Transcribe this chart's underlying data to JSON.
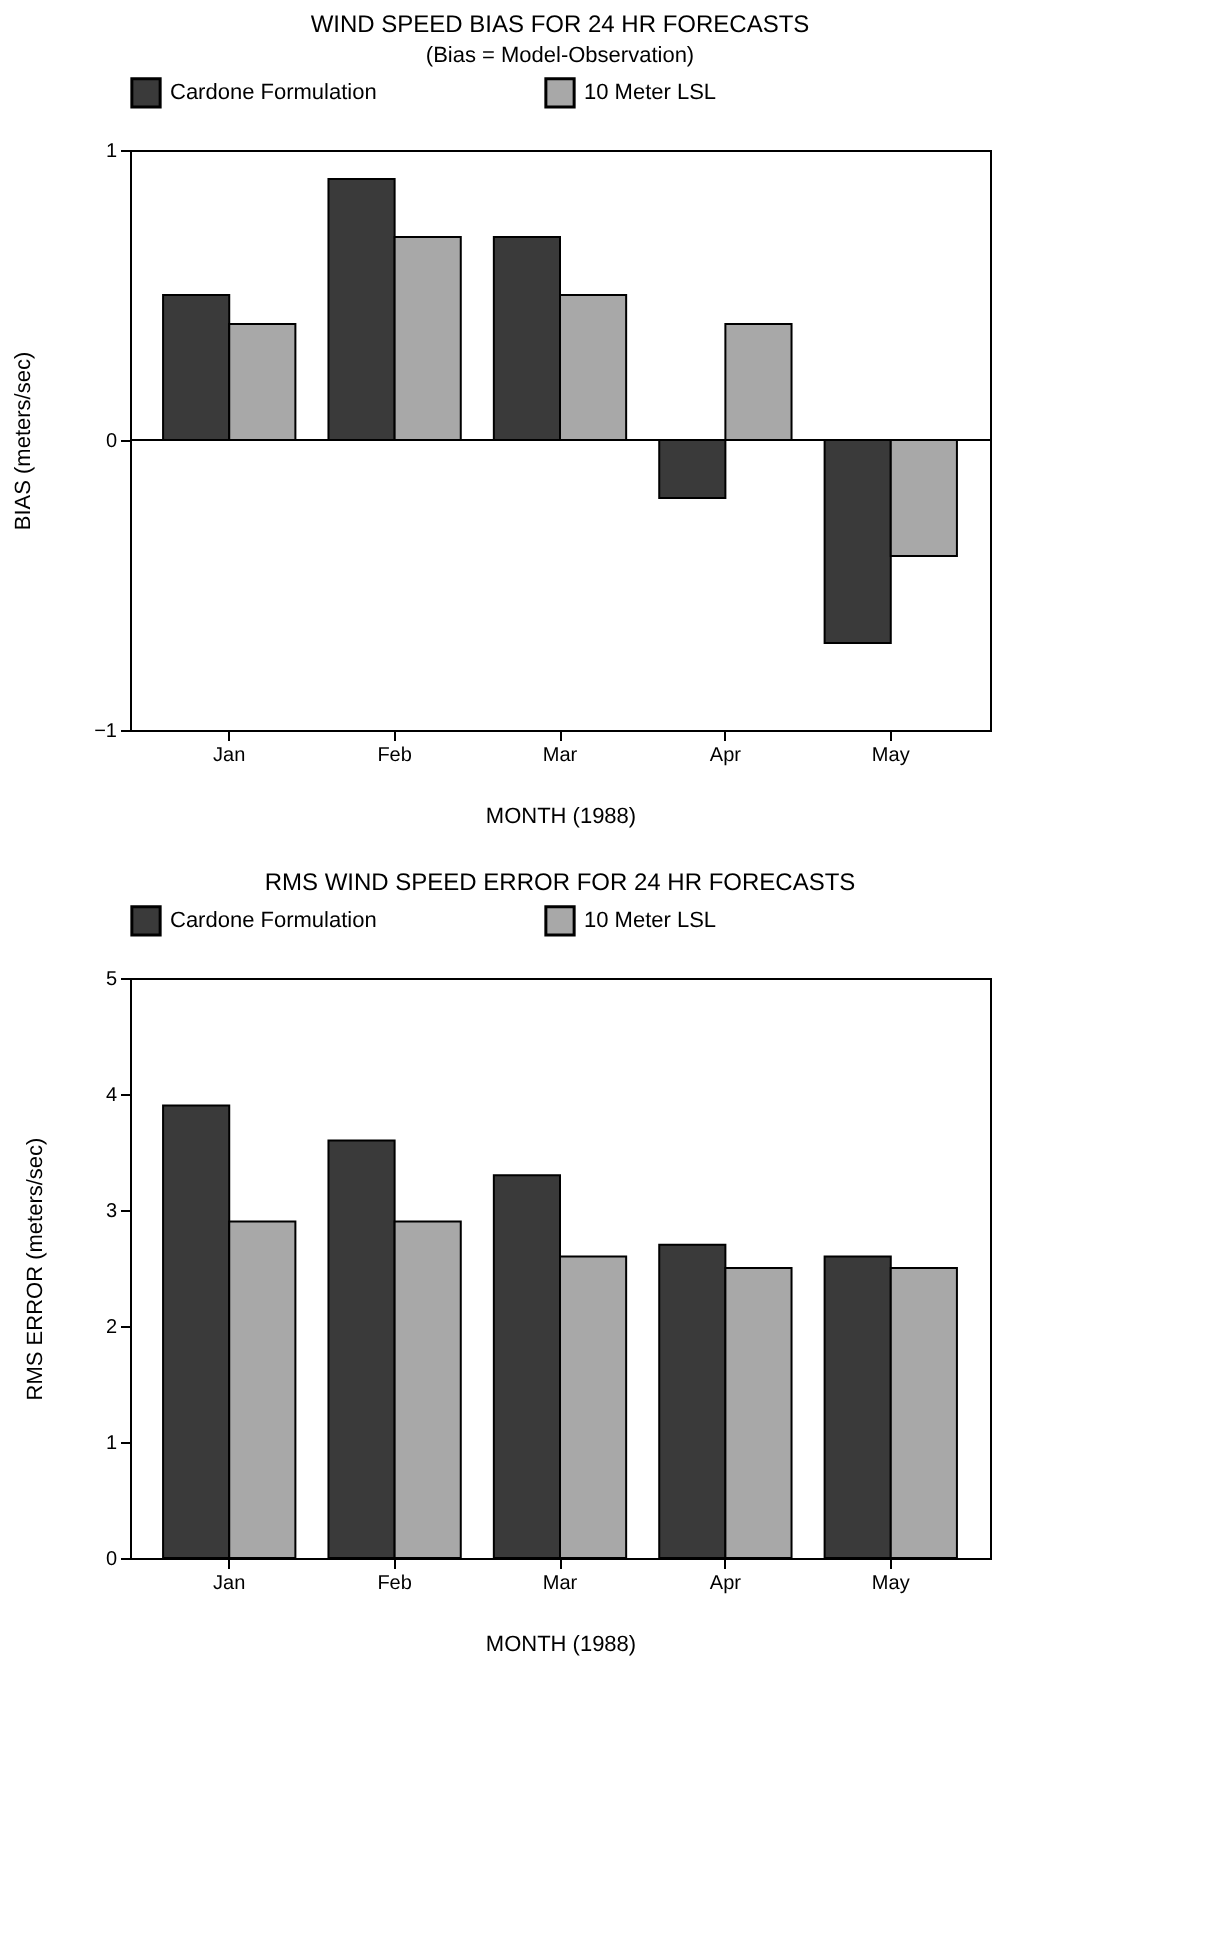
{
  "chart_data": [
    {
      "type": "bar",
      "title": "WIND SPEED BIAS FOR 24 HR FORECASTS",
      "subtitle": "(Bias = Model-Observation)",
      "xlabel": "MONTH (1988)",
      "ylabel": "BIAS (meters/sec)",
      "categories": [
        "Jan",
        "Feb",
        "Mar",
        "Apr",
        "May"
      ],
      "series": [
        {
          "name": "Cardone Formulation",
          "color": "#3a3a3a",
          "values": [
            0.5,
            0.9,
            0.7,
            -0.2,
            -0.7
          ]
        },
        {
          "name": "10 Meter LSL",
          "color": "#a8a8a8",
          "values": [
            0.4,
            0.7,
            0.5,
            0.4,
            -0.4
          ]
        }
      ],
      "ylim": [
        -1,
        1
      ],
      "yticks": [
        -1,
        0,
        1
      ],
      "ref_lines": [
        {
          "axis": "y",
          "value": 0
        }
      ],
      "legend": "top",
      "grid": false
    },
    {
      "type": "bar",
      "title": "RMS WIND SPEED ERROR FOR 24 HR FORECASTS",
      "xlabel": "MONTH (1988)",
      "ylabel": "RMS ERROR (meters/sec)",
      "categories": [
        "Jan",
        "Feb",
        "Mar",
        "Apr",
        "May"
      ],
      "series": [
        {
          "name": "Cardone Formulation",
          "color": "#3a3a3a",
          "values": [
            3.9,
            3.6,
            3.3,
            2.7,
            2.6
          ]
        },
        {
          "name": "10 Meter LSL",
          "color": "#a8a8a8",
          "values": [
            2.9,
            2.9,
            2.6,
            2.5,
            2.5
          ]
        }
      ],
      "ylim": [
        0,
        5
      ],
      "yticks": [
        0,
        1,
        2,
        3,
        4,
        5
      ],
      "legend": "top",
      "grid": false
    }
  ]
}
